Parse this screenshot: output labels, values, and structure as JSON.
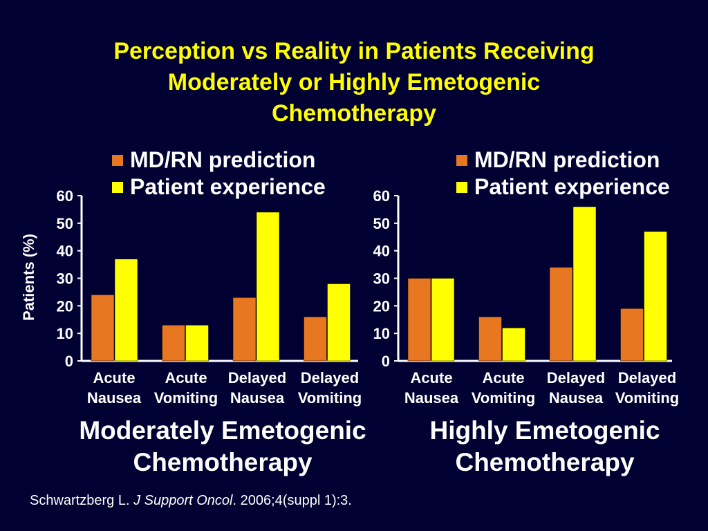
{
  "title_lines": [
    "Perception vs Reality in Patients Receiving",
    "Moderately or Highly Emetogenic",
    "Chemotherapy"
  ],
  "legend": {
    "series1": "MD/RN prediction",
    "series2": "Patient experience"
  },
  "colors": {
    "series1": "#e87722",
    "series2": "#ffff00",
    "background": "#000033",
    "title": "#ffff00"
  },
  "source": {
    "author": "Schwartzberg L. ",
    "journal": "J Support Oncol",
    "citation": ". 2006;4(suppl 1):3."
  },
  "chart_data": [
    {
      "type": "bar",
      "title_lines": [
        "Moderately Emetogenic",
        "Chemotherapy"
      ],
      "ylabel": "Patients (%)",
      "categories": [
        [
          "Acute",
          "Nausea"
        ],
        [
          "Acute",
          "Vomiting"
        ],
        [
          "Delayed",
          "Nausea"
        ],
        [
          "Delayed",
          "Vomiting"
        ]
      ],
      "ylim": [
        0,
        60
      ],
      "yticks": [
        0,
        10,
        20,
        30,
        40,
        50,
        60
      ],
      "legend_position": "top-right",
      "series": [
        {
          "name": "MD/RN prediction",
          "values": [
            24,
            13,
            23,
            16
          ]
        },
        {
          "name": "Patient experience",
          "values": [
            37,
            13,
            54,
            28
          ]
        }
      ]
    },
    {
      "type": "bar",
      "title_lines": [
        "Highly Emetogenic",
        "Chemotherapy"
      ],
      "ylabel": "",
      "categories": [
        [
          "Acute",
          "Nausea"
        ],
        [
          "Acute",
          "Vomiting"
        ],
        [
          "Delayed",
          "Nausea"
        ],
        [
          "Delayed",
          "Vomiting"
        ]
      ],
      "ylim": [
        0,
        60
      ],
      "yticks": [
        0,
        10,
        20,
        30,
        40,
        50,
        60
      ],
      "legend_position": "top-right",
      "series": [
        {
          "name": "MD/RN prediction",
          "values": [
            30,
            16,
            34,
            19
          ]
        },
        {
          "name": "Patient experience",
          "values": [
            30,
            12,
            56,
            47
          ]
        }
      ]
    }
  ]
}
